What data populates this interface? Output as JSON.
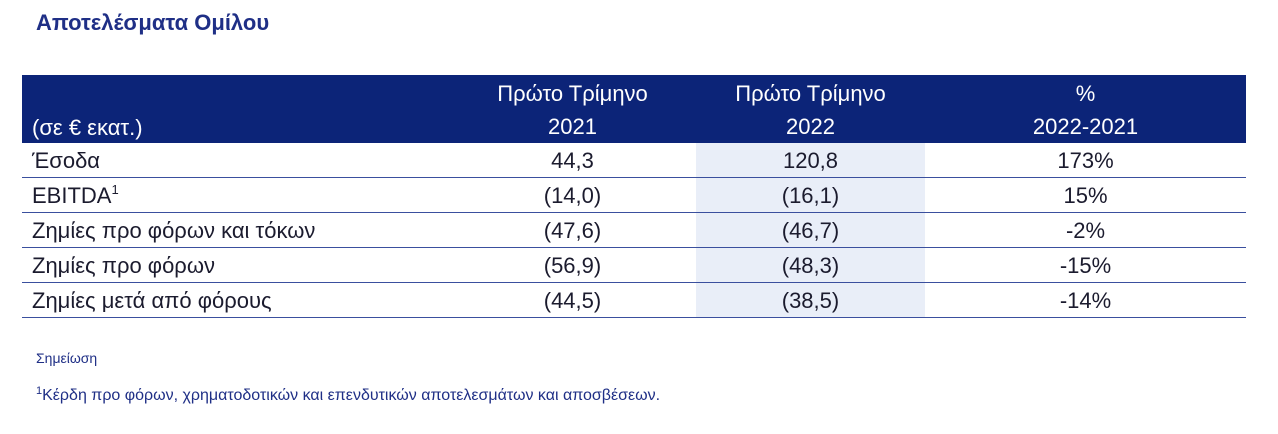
{
  "title": "Αποτελέσματα Ομίλου",
  "table": {
    "unit": "(σε € εκατ.)",
    "columns": [
      [
        "Πρώτο Τρίμηνο",
        "2021"
      ],
      [
        "Πρώτο Τρίμηνο",
        "2022"
      ],
      [
        "%",
        "2022-2021"
      ]
    ],
    "rows": [
      {
        "label": "Έσοδα",
        "cells": [
          "44,3",
          "120,8",
          "173%"
        ]
      },
      {
        "label": "EBITDA",
        "note": "1",
        "cells": [
          "(14,0)",
          "(16,1)",
          "15%"
        ]
      },
      {
        "label": "Ζημίες προ φόρων και τόκων",
        "cells": [
          "(47,6)",
          "(46,7)",
          "-2%"
        ]
      },
      {
        "label": "Ζημίες προ φόρων",
        "cells": [
          "(56,9)",
          "(48,3)",
          "-15%"
        ]
      },
      {
        "label": "Ζημίες μετά από φόρους",
        "cells": [
          "(44,5)",
          "(38,5)",
          "-14%"
        ]
      }
    ]
  },
  "notes": {
    "heading": "Σημείωση",
    "marker": "1",
    "text": "Κέρδη προ φόρων, χρηματοδοτικών και επενδυτικών αποτελεσμάτων και αποσβέσεων."
  }
}
